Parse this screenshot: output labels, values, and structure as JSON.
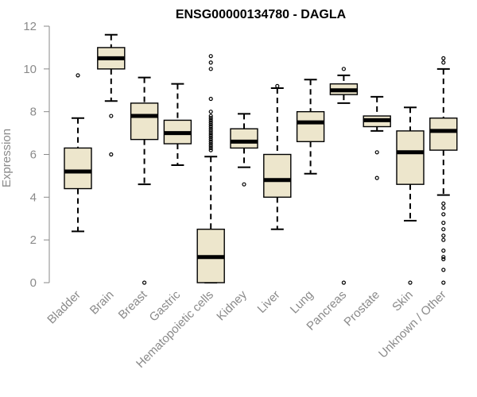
{
  "chart_data": {
    "type": "boxplot",
    "title": "ENSG00000134780 - DAGLA",
    "xlabel": "",
    "ylabel": "Expression",
    "ylim": [
      0,
      12
    ],
    "yticks": [
      0,
      2,
      4,
      6,
      8,
      10,
      12
    ],
    "box_fill": "#ede6cc",
    "series": [
      {
        "name": "Bladder",
        "whisker_low": 2.4,
        "q1": 4.4,
        "median": 5.2,
        "q3": 6.3,
        "whisker_high": 7.7,
        "outliers": [
          9.7
        ]
      },
      {
        "name": "Brain",
        "whisker_low": 8.5,
        "q1": 10.0,
        "median": 10.5,
        "q3": 11.0,
        "whisker_high": 11.6,
        "outliers": [
          7.8,
          6.0
        ]
      },
      {
        "name": "Breast",
        "whisker_low": 4.6,
        "q1": 6.7,
        "median": 7.8,
        "q3": 8.4,
        "whisker_high": 9.6,
        "outliers": [
          0.0
        ]
      },
      {
        "name": "Gastric",
        "whisker_low": 5.5,
        "q1": 6.5,
        "median": 7.0,
        "q3": 7.6,
        "whisker_high": 9.3,
        "outliers": []
      },
      {
        "name": "Hematopoietic cells",
        "whisker_low": 0.0,
        "q1": 0.0,
        "median": 1.2,
        "q3": 2.5,
        "whisker_high": 5.9,
        "outliers": [
          6.2,
          6.3,
          6.4,
          6.5,
          6.6,
          6.7,
          6.8,
          6.9,
          7.0,
          7.1,
          7.2,
          7.3,
          7.4,
          7.5,
          7.6,
          7.7,
          7.8,
          8.0,
          8.6,
          10.0,
          10.3,
          10.6
        ]
      },
      {
        "name": "Kidney",
        "whisker_low": 5.4,
        "q1": 6.3,
        "median": 6.6,
        "q3": 7.2,
        "whisker_high": 7.9,
        "outliers": [
          4.6
        ]
      },
      {
        "name": "Liver",
        "whisker_low": 2.5,
        "q1": 4.0,
        "median": 4.8,
        "q3": 6.0,
        "whisker_high": 9.1,
        "outliers": [
          9.2
        ]
      },
      {
        "name": "Lung",
        "whisker_low": 5.1,
        "q1": 6.6,
        "median": 7.5,
        "q3": 8.0,
        "whisker_high": 9.5,
        "outliers": []
      },
      {
        "name": "Pancreas",
        "whisker_low": 8.4,
        "q1": 8.8,
        "median": 9.0,
        "q3": 9.3,
        "whisker_high": 9.7,
        "outliers": [
          10.0,
          0.0
        ]
      },
      {
        "name": "Prostate",
        "whisker_low": 7.1,
        "q1": 7.3,
        "median": 7.6,
        "q3": 7.8,
        "whisker_high": 8.7,
        "outliers": [
          6.1,
          4.9
        ]
      },
      {
        "name": "Skin",
        "whisker_low": 2.9,
        "q1": 4.6,
        "median": 6.1,
        "q3": 7.1,
        "whisker_high": 8.2,
        "outliers": [
          0.0
        ]
      },
      {
        "name": "Unknown / Other",
        "whisker_low": 4.1,
        "q1": 6.2,
        "median": 7.1,
        "q3": 7.7,
        "whisker_high": 10.0,
        "outliers": [
          10.3,
          10.5,
          3.7,
          3.5,
          3.2,
          2.8,
          2.5,
          2.2,
          2.0,
          1.5,
          1.2,
          1.1,
          0.6,
          0.0
        ]
      }
    ]
  }
}
